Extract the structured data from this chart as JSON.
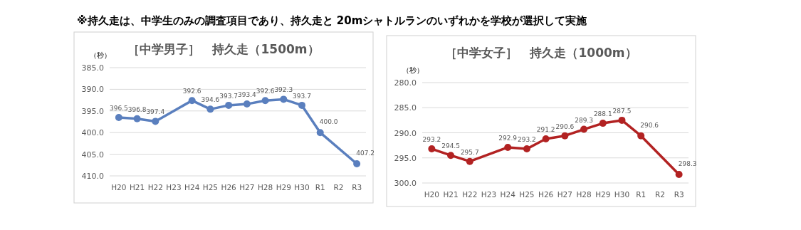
{
  "chart_data": [
    {
      "type": "line",
      "title": "［中学男子］　持久走（1500m）",
      "ylabel": "（秒）",
      "annotations": [
        "※持久走は、中学生のみの調査項目であり、持久走と 20mシャトルランのいずれかを学校が選択して実施"
      ],
      "categories": [
        "H20",
        "H21",
        "H22",
        "H23",
        "H24",
        "H25",
        "H26",
        "H27",
        "H28",
        "H29",
        "H30",
        "R1",
        "R2",
        "R3"
      ],
      "series": [
        {
          "color": "#5a7fbe",
          "values": [
            396.5,
            396.8,
            397.4,
            null,
            392.6,
            394.6,
            393.7,
            393.4,
            392.6,
            392.3,
            393.7,
            400.0,
            null,
            407.2
          ],
          "value_labels": [
            "396.5",
            "396.8",
            "397.4",
            null,
            "392.6",
            "394.6",
            "393.7",
            "393.4",
            "392.6",
            "392.3",
            "393.7",
            "400.0",
            null,
            "407.2"
          ]
        }
      ],
      "ylim": [
        410,
        385
      ],
      "yticks": [
        {
          "value": 385,
          "label": "385.0"
        },
        {
          "value": 390,
          "label": "390.0"
        },
        {
          "value": 395,
          "label": "395.0"
        },
        {
          "value": 400,
          "label": "400.0"
        },
        {
          "value": 405,
          "label": "405.0"
        },
        {
          "value": 410,
          "label": "410.0"
        }
      ],
      "grid": "y",
      "marker": "circle"
    },
    {
      "type": "line",
      "title": "［中学女子］　持久走（1000m）",
      "ylabel": "（秒）",
      "categories": [
        "H20",
        "H21",
        "H22",
        "H23",
        "H24",
        "H25",
        "H26",
        "H27",
        "H28",
        "H29",
        "H30",
        "R1",
        "R2",
        "R3"
      ],
      "series": [
        {
          "color": "#b22222",
          "values": [
            293.2,
            294.5,
            295.7,
            null,
            292.9,
            293.2,
            291.2,
            290.6,
            289.3,
            288.1,
            287.5,
            290.6,
            null,
            298.3
          ],
          "value_labels": [
            "293.2",
            "294.5",
            "295.7",
            null,
            "292.9",
            "293.2",
            "291.2",
            "290.6",
            "289.3",
            "288.1",
            "287.5",
            "290.6",
            null,
            "298.3"
          ]
        }
      ],
      "ylim": [
        300,
        280
      ],
      "yticks": [
        {
          "value": 280,
          "label": "280.0"
        },
        {
          "value": 285,
          "label": "285.0"
        },
        {
          "value": 290,
          "label": "290.0"
        },
        {
          "value": 295,
          "label": "295.0"
        },
        {
          "value": 300,
          "label": "300.0"
        }
      ],
      "grid": "y",
      "marker": "circle"
    }
  ]
}
